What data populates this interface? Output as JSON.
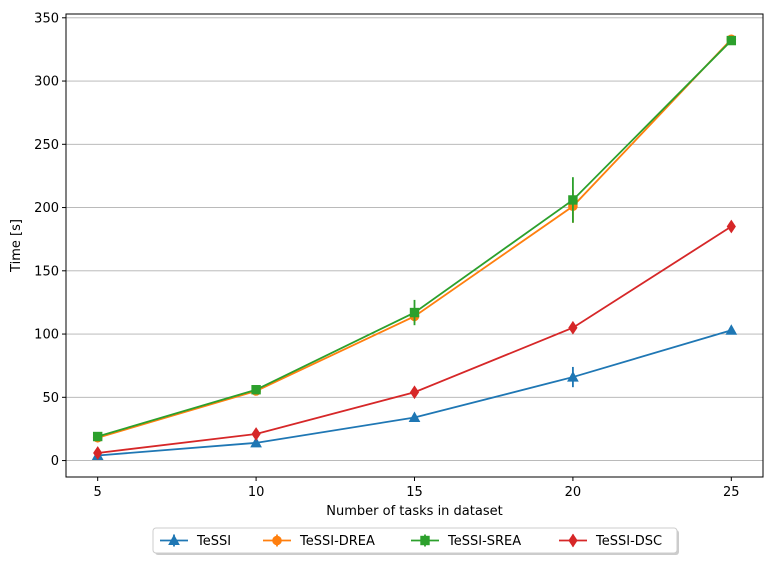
{
  "chart_data": {
    "type": "line",
    "title": "",
    "xlabel": "Number of tasks in dataset",
    "ylabel": "Time [s]",
    "x": [
      5,
      10,
      15,
      20,
      25
    ],
    "xlim": [
      4,
      26
    ],
    "ylim": [
      -13,
      353
    ],
    "xticks": [
      5,
      10,
      15,
      20,
      25
    ],
    "yticks": [
      0,
      50,
      100,
      150,
      200,
      250,
      300,
      350
    ],
    "grid": "horizontal",
    "legend_position": "bottom-center",
    "series": [
      {
        "name": "TeSSI",
        "color": "#1f77b4",
        "marker": "triangle",
        "values": [
          4,
          14,
          34,
          66,
          103
        ],
        "err": [
          1,
          1.5,
          2,
          8,
          1.5
        ]
      },
      {
        "name": "TeSSI-DREA",
        "color": "#ff7f0e",
        "marker": "circle",
        "values": [
          18,
          55,
          114,
          201,
          333
        ],
        "err": [
          1,
          2,
          5,
          13,
          2
        ]
      },
      {
        "name": "TeSSI-SREA",
        "color": "#2ca02c",
        "marker": "square",
        "values": [
          19,
          56,
          117,
          206,
          332
        ],
        "err": [
          1,
          3,
          10,
          18,
          2
        ]
      },
      {
        "name": "TeSSI-DSC",
        "color": "#d62728",
        "marker": "diamond",
        "values": [
          6,
          21,
          54,
          105,
          185
        ],
        "err": [
          1,
          1.5,
          2,
          2,
          2
        ]
      }
    ]
  }
}
